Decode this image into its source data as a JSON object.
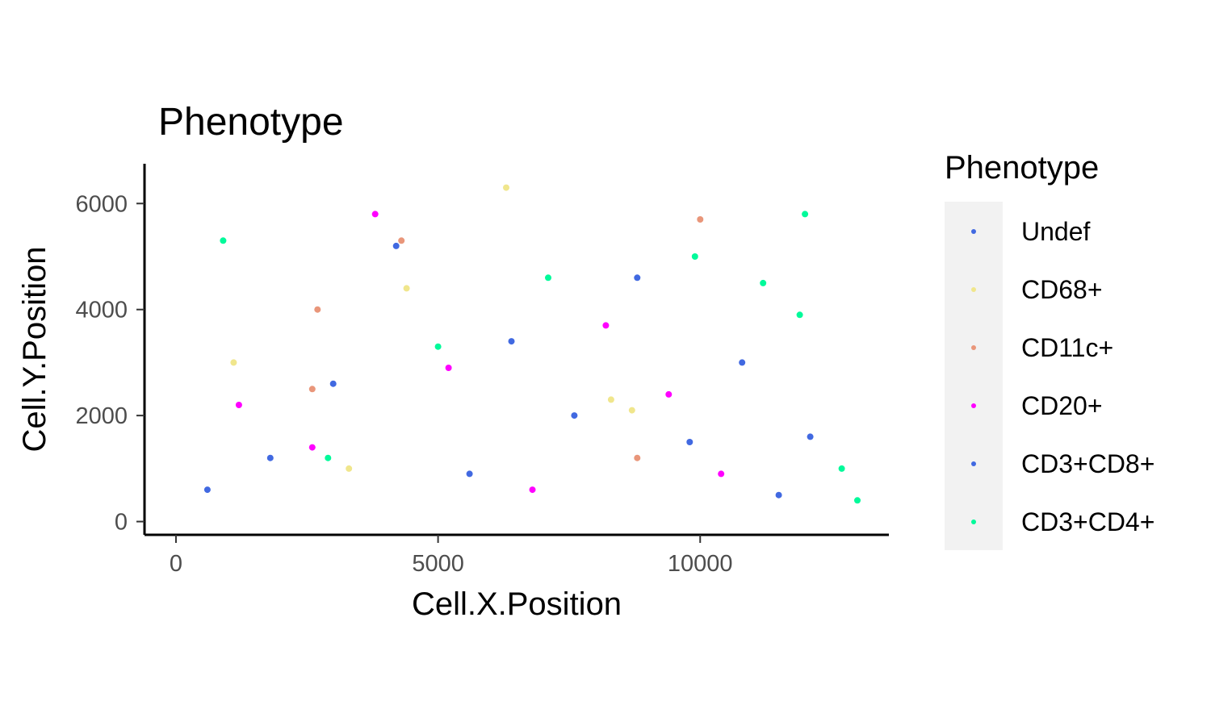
{
  "chart_data": {
    "type": "scatter",
    "title": "Phenotype",
    "xlabel": "Cell.X.Position",
    "ylabel": "Cell.Y.Position",
    "xlim": [
      -600,
      13600
    ],
    "ylim": [
      -250,
      6750
    ],
    "x_ticks": [
      0,
      5000,
      10000
    ],
    "x_tick_labels": [
      "0",
      "5000",
      "10000"
    ],
    "y_ticks": [
      0,
      2000,
      4000,
      6000
    ],
    "y_tick_labels": [
      "0",
      "2000",
      "4000",
      "6000"
    ],
    "grid": false,
    "legend": {
      "title": "Phenotype",
      "placement": "right",
      "entries": [
        {
          "name": "Undef",
          "color": "#4169e1"
        },
        {
          "name": "CD68+",
          "color": "#f0e68c"
        },
        {
          "name": "CD11c+",
          "color": "#e9967a"
        },
        {
          "name": "CD20+",
          "color": "#ff00ff"
        },
        {
          "name": "CD3+CD8+",
          "color": "#4169e1"
        },
        {
          "name": "CD3+CD4+",
          "color": "#00fa9a"
        }
      ]
    },
    "series": [
      {
        "name": "CD3+CD8+",
        "color": "#4169e1",
        "points": [
          [
            600,
            600
          ],
          [
            1800,
            1200
          ],
          [
            3000,
            2600
          ],
          [
            4200,
            5200
          ],
          [
            5600,
            900
          ],
          [
            6400,
            3400
          ],
          [
            7600,
            2000
          ],
          [
            8800,
            4600
          ],
          [
            9800,
            1500
          ],
          [
            10800,
            3000
          ],
          [
            11500,
            500
          ],
          [
            12100,
            1600
          ]
        ]
      },
      {
        "name": "CD20+",
        "color": "#ff00ff",
        "points": [
          [
            1200,
            2200
          ],
          [
            2600,
            1400
          ],
          [
            3800,
            5800
          ],
          [
            5200,
            2900
          ],
          [
            6800,
            600
          ],
          [
            8200,
            3700
          ],
          [
            9400,
            2400
          ],
          [
            10400,
            900
          ]
        ]
      },
      {
        "name": "CD68+",
        "color": "#f0e68c",
        "points": [
          [
            1100,
            3000
          ],
          [
            3300,
            1000
          ],
          [
            4400,
            4400
          ],
          [
            6300,
            6300
          ],
          [
            8300,
            2300
          ],
          [
            8700,
            2100
          ]
        ]
      },
      {
        "name": "CD11c+",
        "color": "#e9967a",
        "points": [
          [
            2700,
            4000
          ],
          [
            2600,
            2500
          ],
          [
            4300,
            5300
          ],
          [
            8800,
            1200
          ],
          [
            10000,
            5700
          ]
        ]
      },
      {
        "name": "CD3+CD4+",
        "color": "#00fa9a",
        "points": [
          [
            900,
            5300
          ],
          [
            2900,
            1200
          ],
          [
            5000,
            3300
          ],
          [
            7100,
            4600
          ],
          [
            9900,
            5000
          ],
          [
            11200,
            4500
          ],
          [
            11900,
            3900
          ],
          [
            12700,
            1000
          ],
          [
            13000,
            400
          ],
          [
            12000,
            5800
          ]
        ]
      }
    ]
  }
}
